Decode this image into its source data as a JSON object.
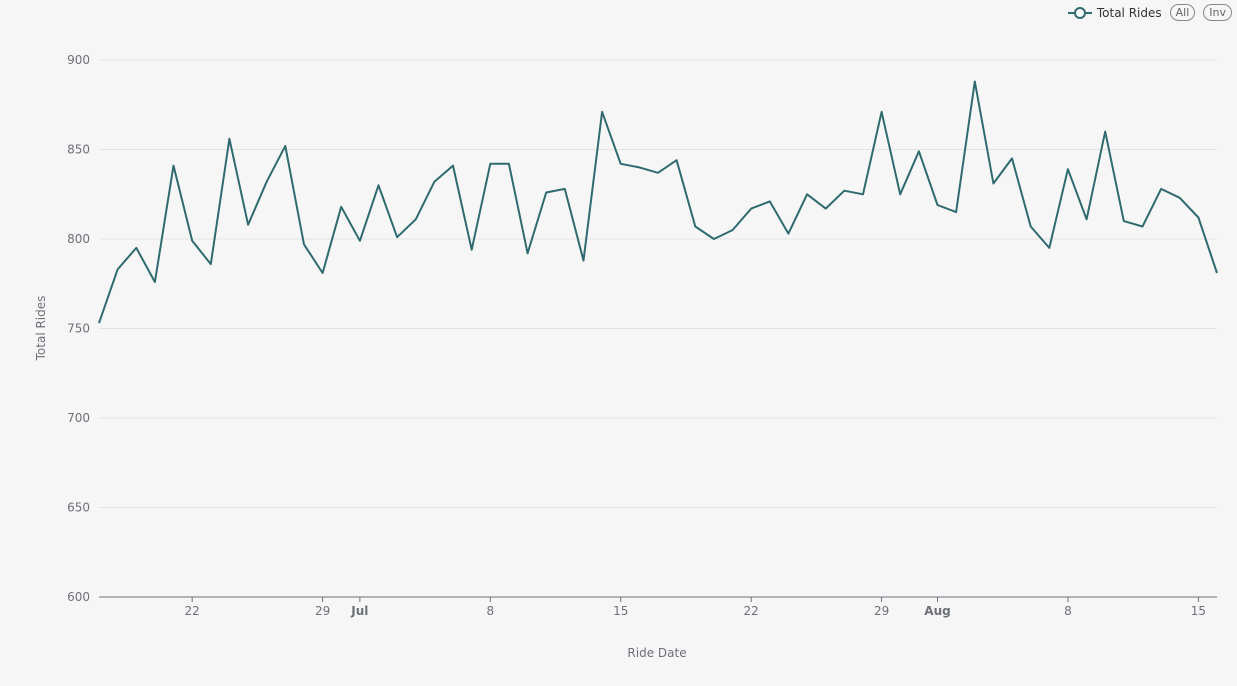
{
  "legend": {
    "series_label": "Total Rides",
    "all_label": "All",
    "inv_label": "Inv"
  },
  "colors": {
    "line": "#2f6b6e",
    "grid": "#e4e4e4",
    "axis": "#6e7079"
  },
  "chart_data": {
    "type": "line",
    "xlabel": "Ride Date",
    "ylabel": "Total Rides",
    "ylim": [
      600,
      900
    ],
    "yticks": [
      600,
      650,
      700,
      750,
      800,
      850,
      900
    ],
    "x_start": "2018-06-17",
    "x_end": "2018-08-16",
    "xticks": [
      {
        "date": "2018-06-22",
        "label": "22"
      },
      {
        "date": "2018-06-29",
        "label": "29"
      },
      {
        "date": "2018-07-01",
        "label": "Jul",
        "bold": true
      },
      {
        "date": "2018-07-08",
        "label": "8"
      },
      {
        "date": "2018-07-15",
        "label": "15"
      },
      {
        "date": "2018-07-22",
        "label": "22"
      },
      {
        "date": "2018-07-29",
        "label": "29"
      },
      {
        "date": "2018-08-01",
        "label": "Aug",
        "bold": true
      },
      {
        "date": "2018-08-08",
        "label": "8"
      },
      {
        "date": "2018-08-15",
        "label": "15"
      }
    ],
    "series": [
      {
        "name": "Total Rides",
        "x": [
          "2018-06-17",
          "2018-06-18",
          "2018-06-19",
          "2018-06-20",
          "2018-06-21",
          "2018-06-22",
          "2018-06-23",
          "2018-06-24",
          "2018-06-25",
          "2018-06-26",
          "2018-06-27",
          "2018-06-28",
          "2018-06-29",
          "2018-06-30",
          "2018-07-01",
          "2018-07-02",
          "2018-07-03",
          "2018-07-04",
          "2018-07-05",
          "2018-07-06",
          "2018-07-07",
          "2018-07-08",
          "2018-07-09",
          "2018-07-10",
          "2018-07-11",
          "2018-07-12",
          "2018-07-13",
          "2018-07-14",
          "2018-07-15",
          "2018-07-16",
          "2018-07-17",
          "2018-07-18",
          "2018-07-19",
          "2018-07-20",
          "2018-07-21",
          "2018-07-22",
          "2018-07-23",
          "2018-07-24",
          "2018-07-25",
          "2018-07-26",
          "2018-07-27",
          "2018-07-28",
          "2018-07-29",
          "2018-07-30",
          "2018-07-31",
          "2018-08-01",
          "2018-08-02",
          "2018-08-03",
          "2018-08-04",
          "2018-08-05",
          "2018-08-06",
          "2018-08-07",
          "2018-08-08",
          "2018-08-09",
          "2018-08-10",
          "2018-08-11",
          "2018-08-12",
          "2018-08-13",
          "2018-08-14",
          "2018-08-15",
          "2018-08-16"
        ],
        "values": [
          753,
          783,
          795,
          776,
          841,
          799,
          786,
          856,
          808,
          832,
          852,
          797,
          781,
          818,
          799,
          830,
          801,
          811,
          832,
          841,
          794,
          842,
          842,
          792,
          826,
          828,
          788,
          871,
          842,
          840,
          837,
          844,
          807,
          800,
          805,
          817,
          821,
          803,
          825,
          817,
          827,
          825,
          871,
          825,
          849,
          819,
          815,
          888,
          831,
          845,
          807,
          795,
          839,
          811,
          860,
          810,
          807,
          828,
          823,
          812,
          781
        ]
      }
    ]
  }
}
